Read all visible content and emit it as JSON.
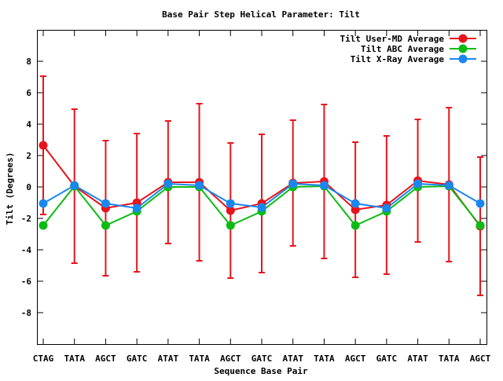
{
  "chart_data": {
    "type": "line",
    "title": "Base Pair Step Helical Parameter: Tilt",
    "xlabel": "Sequence Base Pair",
    "ylabel": "Tilt (Degrees)",
    "ylim": [
      -10,
      10
    ],
    "yticks": [
      -8,
      -6,
      -4,
      -2,
      0,
      2,
      4,
      6,
      8
    ],
    "categories": [
      "CTAG",
      "TATA",
      "AGCT",
      "GATC",
      "ATAT",
      "TATA",
      "AGCT",
      "GATC",
      "ATAT",
      "TATA",
      "AGCT",
      "GATC",
      "ATAT",
      "TATA",
      "AGCT"
    ],
    "grid": false,
    "legend_position": "top-right",
    "series": [
      {
        "name": "Tilt User-MD Average",
        "color": "#e8141b",
        "values": [
          2.65,
          0.05,
          -1.35,
          -1.0,
          0.3,
          0.3,
          -1.5,
          -1.05,
          0.25,
          0.35,
          -1.45,
          -1.15,
          0.4,
          0.15,
          -2.5
        ],
        "error": [
          4.4,
          4.9,
          4.3,
          4.4,
          3.9,
          5.0,
          4.3,
          4.4,
          4.0,
          4.9,
          4.3,
          4.4,
          3.9,
          4.9,
          4.4
        ]
      },
      {
        "name": "Tilt ABC Average",
        "color": "#0cbb14",
        "values": [
          -2.45,
          0.05,
          -2.45,
          -1.55,
          0.0,
          0.0,
          -2.45,
          -1.55,
          0.0,
          0.05,
          -2.45,
          -1.55,
          0.0,
          0.05,
          -2.45
        ]
      },
      {
        "name": "Tilt X-Ray Average",
        "color": "#1a87f0",
        "values": [
          -1.05,
          0.1,
          -1.05,
          -1.35,
          0.2,
          0.1,
          -1.05,
          -1.3,
          0.2,
          0.1,
          -1.05,
          -1.35,
          0.2,
          0.1,
          -1.05
        ]
      }
    ]
  }
}
